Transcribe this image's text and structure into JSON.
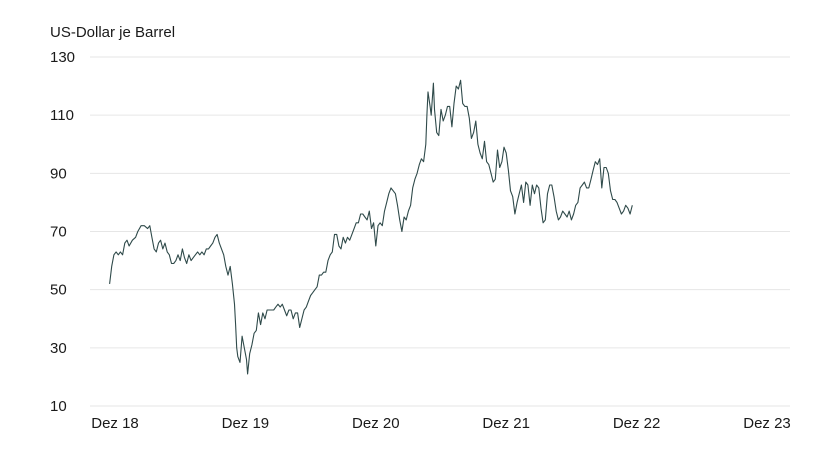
{
  "chart_data": {
    "type": "line",
    "ylabel": "US-Dollar je Barrel",
    "ylim": [
      10,
      130
    ],
    "yticks": [
      10,
      30,
      50,
      70,
      90,
      110,
      130
    ],
    "xlim": [
      0,
      60
    ],
    "xticks": [
      {
        "value": 0,
        "label": "Dez 18"
      },
      {
        "value": 12,
        "label": "Dez 19"
      },
      {
        "value": 24,
        "label": "Dez 20"
      },
      {
        "value": 36,
        "label": "Dez 21"
      },
      {
        "value": 48,
        "label": "Dez 22"
      },
      {
        "value": 60,
        "label": "Dez 23"
      }
    ],
    "grid": "horizontal",
    "color": "#2f4a4a",
    "series": [
      {
        "points": [
          [
            -0.5,
            52
          ],
          [
            -0.3,
            58
          ],
          [
            -0.1,
            62
          ],
          [
            0.1,
            63
          ],
          [
            0.3,
            62
          ],
          [
            0.5,
            63
          ],
          [
            0.7,
            62
          ],
          [
            0.9,
            66
          ],
          [
            1.1,
            67
          ],
          [
            1.3,
            65
          ],
          [
            1.6,
            67
          ],
          [
            1.9,
            68
          ],
          [
            2.1,
            70
          ],
          [
            2.4,
            72
          ],
          [
            2.7,
            72
          ],
          [
            3.0,
            71
          ],
          [
            3.2,
            72
          ],
          [
            3.4,
            68
          ],
          [
            3.6,
            64
          ],
          [
            3.8,
            63
          ],
          [
            4.0,
            66
          ],
          [
            4.2,
            67
          ],
          [
            4.4,
            64
          ],
          [
            4.6,
            66
          ],
          [
            4.8,
            63
          ],
          [
            5.0,
            62
          ],
          [
            5.2,
            59
          ],
          [
            5.4,
            59
          ],
          [
            5.6,
            60
          ],
          [
            5.8,
            62
          ],
          [
            6.0,
            60
          ],
          [
            6.2,
            64
          ],
          [
            6.4,
            61
          ],
          [
            6.6,
            59
          ],
          [
            6.8,
            62
          ],
          [
            7.0,
            60
          ],
          [
            7.2,
            61
          ],
          [
            7.4,
            62
          ],
          [
            7.6,
            63
          ],
          [
            7.8,
            62
          ],
          [
            8.0,
            63
          ],
          [
            8.2,
            62
          ],
          [
            8.4,
            64
          ],
          [
            8.6,
            64
          ],
          [
            8.8,
            65
          ],
          [
            9.0,
            66
          ],
          [
            9.2,
            68
          ],
          [
            9.4,
            69
          ],
          [
            9.6,
            66
          ],
          [
            9.8,
            64
          ],
          [
            10.0,
            62
          ],
          [
            10.2,
            58
          ],
          [
            10.4,
            55
          ],
          [
            10.6,
            58
          ],
          [
            10.8,
            52
          ],
          [
            11.0,
            45
          ],
          [
            11.1,
            38
          ],
          [
            11.2,
            30
          ],
          [
            11.3,
            27
          ],
          [
            11.5,
            25
          ],
          [
            11.7,
            34
          ],
          [
            11.9,
            30
          ],
          [
            12.1,
            26
          ],
          [
            12.2,
            21
          ],
          [
            12.4,
            28
          ],
          [
            12.6,
            31
          ],
          [
            12.8,
            35
          ],
          [
            13.0,
            36
          ],
          [
            13.2,
            42
          ],
          [
            13.4,
            38
          ],
          [
            13.6,
            42
          ],
          [
            13.8,
            40
          ],
          [
            14.0,
            43
          ],
          [
            14.2,
            43
          ],
          [
            14.4,
            43
          ],
          [
            14.6,
            43
          ],
          [
            14.8,
            44
          ],
          [
            15.0,
            45
          ],
          [
            15.2,
            44
          ],
          [
            15.4,
            45
          ],
          [
            15.6,
            43
          ],
          [
            15.8,
            41
          ],
          [
            16.0,
            43
          ],
          [
            16.2,
            43
          ],
          [
            16.4,
            40
          ],
          [
            16.6,
            42
          ],
          [
            16.8,
            42
          ],
          [
            17.0,
            37
          ],
          [
            17.2,
            40
          ],
          [
            17.4,
            43
          ],
          [
            17.6,
            44
          ],
          [
            17.8,
            46
          ],
          [
            18.0,
            48
          ],
          [
            18.2,
            49
          ],
          [
            18.4,
            50
          ],
          [
            18.6,
            51
          ],
          [
            18.8,
            55
          ],
          [
            19.0,
            55
          ],
          [
            19.2,
            56
          ],
          [
            19.4,
            56
          ],
          [
            19.6,
            60
          ],
          [
            19.8,
            62
          ],
          [
            20.0,
            63
          ],
          [
            20.2,
            69
          ],
          [
            20.4,
            69
          ],
          [
            20.6,
            65
          ],
          [
            20.8,
            64
          ],
          [
            21.0,
            68
          ],
          [
            21.2,
            66
          ],
          [
            21.4,
            68
          ],
          [
            21.6,
            67
          ],
          [
            21.8,
            69
          ],
          [
            22.0,
            71
          ],
          [
            22.2,
            73
          ],
          [
            22.4,
            73
          ],
          [
            22.6,
            76
          ],
          [
            22.8,
            76
          ],
          [
            23.0,
            75
          ],
          [
            23.2,
            74
          ],
          [
            23.4,
            77
          ],
          [
            23.6,
            71
          ],
          [
            23.8,
            73
          ],
          [
            24.0,
            65
          ],
          [
            24.2,
            72
          ],
          [
            24.4,
            73
          ],
          [
            24.6,
            72
          ],
          [
            24.8,
            77
          ],
          [
            25.0,
            80
          ],
          [
            25.2,
            83
          ],
          [
            25.4,
            85
          ],
          [
            25.6,
            84
          ],
          [
            25.8,
            83
          ],
          [
            26.0,
            79
          ],
          [
            26.2,
            74
          ],
          [
            26.4,
            70
          ],
          [
            26.6,
            75
          ],
          [
            26.8,
            74
          ],
          [
            27.0,
            77
          ],
          [
            27.2,
            79
          ],
          [
            27.4,
            85
          ],
          [
            27.6,
            88
          ],
          [
            27.8,
            90
          ],
          [
            28.0,
            93
          ],
          [
            28.2,
            95
          ],
          [
            28.4,
            94
          ],
          [
            28.6,
            100
          ],
          [
            28.7,
            110
          ],
          [
            28.8,
            118
          ],
          [
            29.0,
            113
          ],
          [
            29.1,
            110
          ],
          [
            29.3,
            121
          ],
          [
            29.4,
            112
          ],
          [
            29.6,
            104
          ],
          [
            29.8,
            103
          ],
          [
            30.0,
            112
          ],
          [
            30.2,
            108
          ],
          [
            30.4,
            110
          ],
          [
            30.6,
            113
          ],
          [
            30.8,
            113
          ],
          [
            31.0,
            106
          ],
          [
            31.2,
            114
          ],
          [
            31.4,
            120
          ],
          [
            31.6,
            119
          ],
          [
            31.8,
            122
          ],
          [
            32.0,
            114
          ],
          [
            32.2,
            113
          ],
          [
            32.4,
            113
          ],
          [
            32.6,
            109
          ],
          [
            32.8,
            102
          ],
          [
            33.0,
            104
          ],
          [
            33.2,
            108
          ],
          [
            33.4,
            100
          ],
          [
            33.6,
            97
          ],
          [
            33.8,
            95
          ],
          [
            34.0,
            101
          ],
          [
            34.2,
            94
          ],
          [
            34.4,
            93
          ],
          [
            34.6,
            90
          ],
          [
            34.8,
            87
          ],
          [
            35.0,
            88
          ],
          [
            35.2,
            98
          ],
          [
            35.4,
            92
          ],
          [
            35.6,
            94
          ],
          [
            35.8,
            99
          ],
          [
            36.0,
            97
          ],
          [
            36.2,
            91
          ],
          [
            36.4,
            84
          ],
          [
            36.6,
            82
          ],
          [
            36.8,
            76
          ],
          [
            37.0,
            80
          ],
          [
            37.2,
            83
          ],
          [
            37.4,
            86
          ],
          [
            37.6,
            80
          ],
          [
            37.8,
            87
          ],
          [
            38.0,
            86
          ],
          [
            38.2,
            79
          ],
          [
            38.4,
            86
          ],
          [
            38.6,
            83
          ],
          [
            38.8,
            86
          ],
          [
            39.0,
            85
          ],
          [
            39.2,
            78
          ],
          [
            39.4,
            73
          ],
          [
            39.6,
            74
          ],
          [
            39.8,
            83
          ],
          [
            40.0,
            86
          ],
          [
            40.2,
            86
          ],
          [
            40.4,
            82
          ],
          [
            40.6,
            77
          ],
          [
            40.8,
            74
          ],
          [
            41.0,
            75
          ],
          [
            41.2,
            77
          ],
          [
            41.4,
            76
          ],
          [
            41.6,
            75
          ],
          [
            41.8,
            77
          ],
          [
            42.0,
            74
          ],
          [
            42.2,
            76
          ],
          [
            42.4,
            79
          ],
          [
            42.6,
            80
          ],
          [
            42.8,
            85
          ],
          [
            43.0,
            86
          ],
          [
            43.2,
            87
          ],
          [
            43.4,
            85
          ],
          [
            43.6,
            85
          ],
          [
            43.8,
            88
          ],
          [
            44.0,
            91
          ],
          [
            44.2,
            94
          ],
          [
            44.4,
            93
          ],
          [
            44.6,
            95
          ],
          [
            44.8,
            85
          ],
          [
            45.0,
            92
          ],
          [
            45.2,
            92
          ],
          [
            45.4,
            90
          ],
          [
            45.6,
            84
          ],
          [
            45.8,
            81
          ],
          [
            46.0,
            81
          ],
          [
            46.2,
            80
          ],
          [
            46.4,
            78
          ],
          [
            46.6,
            76
          ],
          [
            46.8,
            77
          ],
          [
            47.0,
            79
          ],
          [
            47.2,
            78
          ],
          [
            47.4,
            76
          ],
          [
            47.6,
            79
          ]
        ]
      }
    ]
  }
}
